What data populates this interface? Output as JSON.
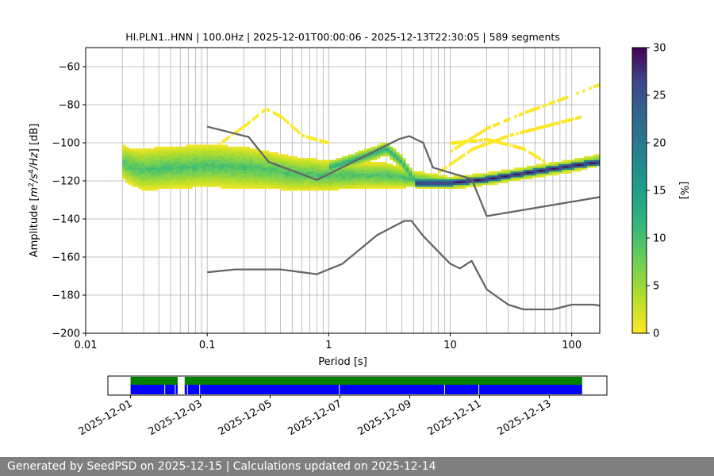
{
  "chart_data": [
    {
      "type": "heatmap",
      "title": "HI.PLN1..HNN | 100.0Hz | 2025-12-01T00:00:06 - 2025-12-13T22:30:05 | 589 segments",
      "xlabel": "Period [s]",
      "ylabel_parts": [
        "Amplitude [",
        "m",
        "2",
        "/s",
        "4",
        "/Hz",
        "] [dB]"
      ],
      "x_scale": "log",
      "xlim": [
        0.01,
        170
      ],
      "ylim": [
        -200,
        -50
      ],
      "x_ticks": [
        0.01,
        0.1,
        1,
        10,
        100
      ],
      "x_tick_labels": [
        "0.01",
        "0.1",
        "1",
        "10",
        "100"
      ],
      "y_ticks": [
        -200,
        -180,
        -160,
        -140,
        -120,
        -100,
        -80,
        -60
      ],
      "y_tick_labels": [
        "−200",
        "−180",
        "−160",
        "−140",
        "−120",
        "−100",
        "−80",
        "−60"
      ],
      "grid_x": true,
      "grid_y": true,
      "colorbar": {
        "label": "[%]",
        "range": [
          0,
          30
        ],
        "ticks": [
          0,
          5,
          10,
          15,
          20,
          25,
          30
        ],
        "tick_labels": [
          "0",
          "5",
          "10",
          "15",
          "20",
          "25",
          "30"
        ],
        "colormap": "viridis_r"
      },
      "density": {
        "main_band": [
          {
            "x": 0.02,
            "center": -110,
            "half_width": 8
          },
          {
            "x": 0.025,
            "center": -113,
            "half_width": 9
          },
          {
            "x": 0.03,
            "center": -114,
            "half_width": 10
          },
          {
            "x": 0.05,
            "center": -113,
            "half_width": 10
          },
          {
            "x": 0.1,
            "center": -112,
            "half_width": 10
          },
          {
            "x": 0.2,
            "center": -113,
            "half_width": 10
          },
          {
            "x": 0.3,
            "center": -114,
            "half_width": 9
          },
          {
            "x": 0.5,
            "center": -116,
            "half_width": 8
          },
          {
            "x": 1,
            "center": -117,
            "half_width": 7
          },
          {
            "x": 2,
            "center": -117,
            "half_width": 6
          },
          {
            "x": 3,
            "center": -117,
            "half_width": 6
          },
          {
            "x": 5,
            "center": -119,
            "half_width": 4
          },
          {
            "x": 10,
            "center": -121,
            "half_width": 3
          },
          {
            "x": 20,
            "center": -119,
            "half_width": 3
          },
          {
            "x": 50,
            "center": -115,
            "half_width": 3
          },
          {
            "x": 100,
            "center": -112,
            "half_width": 3
          },
          {
            "x": 170,
            "center": -109,
            "half_width": 3
          }
        ],
        "dark_ridge": [
          {
            "x": 5,
            "y": -121
          },
          {
            "x": 10,
            "y": -121
          },
          {
            "x": 20,
            "y": -119
          },
          {
            "x": 50,
            "y": -115
          },
          {
            "x": 100,
            "y": -112
          },
          {
            "x": 170,
            "y": -110
          }
        ],
        "hump_band": [
          {
            "x": 1,
            "y": -113
          },
          {
            "x": 2,
            "y": -107
          },
          {
            "x": 3,
            "y": -103
          },
          {
            "x": 4,
            "y": -110
          },
          {
            "x": 5,
            "y": -119
          }
        ],
        "scatter_traces": [
          [
            {
              "x": 0.12,
              "y": -101
            },
            {
              "x": 0.2,
              "y": -91
            },
            {
              "x": 0.3,
              "y": -82
            },
            {
              "x": 0.4,
              "y": -86
            },
            {
              "x": 0.6,
              "y": -96
            },
            {
              "x": 1,
              "y": -100
            }
          ],
          [
            {
              "x": 10,
              "y": -104
            },
            {
              "x": 20,
              "y": -92
            },
            {
              "x": 40,
              "y": -84
            },
            {
              "x": 80,
              "y": -77
            },
            {
              "x": 170,
              "y": -69
            }
          ],
          [
            {
              "x": 8,
              "y": -115
            },
            {
              "x": 15,
              "y": -103
            },
            {
              "x": 30,
              "y": -96
            },
            {
              "x": 60,
              "y": -91
            },
            {
              "x": 120,
              "y": -86
            }
          ],
          [
            {
              "x": 10,
              "y": -100
            },
            {
              "x": 20,
              "y": -98
            },
            {
              "x": 40,
              "y": -103
            },
            {
              "x": 60,
              "y": -110
            }
          ]
        ]
      },
      "series": [
        {
          "name": "",
          "color": "#666666",
          "points": [
            [
              0.1,
              -91.5
            ],
            [
              0.22,
              -97
            ],
            [
              0.32,
              -110
            ],
            [
              0.8,
              -119.5
            ],
            [
              3.8,
              -98
            ],
            [
              4.6,
              -96.5
            ],
            [
              6,
              -100
            ],
            [
              7.2,
              -113
            ],
            [
              15,
              -119
            ],
            [
              20,
              -138.5
            ],
            [
              170,
              -128.5
            ]
          ]
        },
        {
          "name": "",
          "color": "#666666",
          "points": [
            [
              0.1,
              -168
            ],
            [
              0.17,
              -166.5
            ],
            [
              0.4,
              -166.5
            ],
            [
              0.8,
              -169
            ],
            [
              1.3,
              -163.5
            ],
            [
              2.5,
              -148.5
            ],
            [
              4.2,
              -141
            ],
            [
              4.8,
              -141
            ],
            [
              6,
              -149
            ],
            [
              10,
              -163.5
            ],
            [
              12,
              -166
            ],
            [
              15,
              -162
            ],
            [
              20,
              -177
            ],
            [
              30,
              -185
            ],
            [
              40,
              -187.5
            ],
            [
              70,
              -187.5
            ],
            [
              100,
              -185
            ],
            [
              150,
              -185
            ],
            [
              170,
              -185.5
            ]
          ]
        }
      ]
    },
    {
      "type": "timeline",
      "x_ticks": [
        "2025-12-01",
        "2025-12-03",
        "2025-12-05",
        "2025-12-07",
        "2025-12-09",
        "2025-12-11",
        "2025-12-13"
      ],
      "x_tick_days": [
        0,
        2,
        4,
        6,
        8,
        10,
        12
      ],
      "xlim_days": [
        -0.65,
        13.65
      ],
      "colors": {
        "upper": "#008000",
        "lower": "#0000ff"
      },
      "upper_segments": [
        [
          0,
          1.35
        ],
        [
          1.55,
          12.94
        ]
      ],
      "lower_segments": [
        [
          0,
          1.35
        ],
        [
          1.55,
          12.94
        ]
      ],
      "lower_gaps": [
        0.98,
        1.28,
        1.63,
        1.98,
        5.98,
        9.0,
        9.98
      ]
    }
  ],
  "footer": {
    "text": "Generated by SeedPSD on 2025-12-15 | Calculations updated on 2025-12-14"
  }
}
